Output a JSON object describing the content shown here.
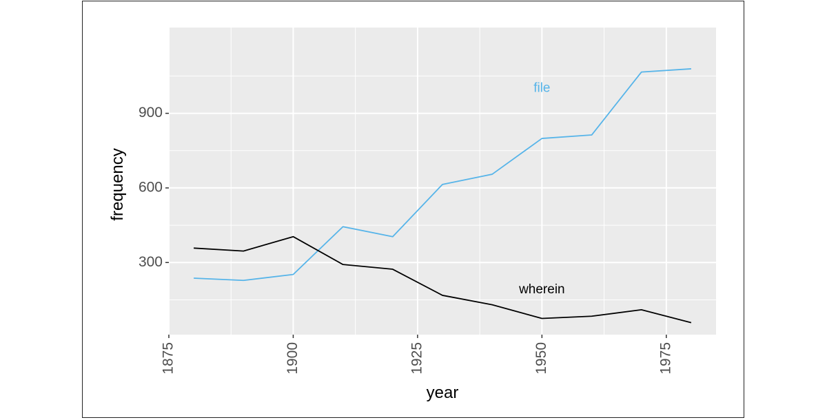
{
  "chart_data": {
    "type": "line",
    "title": "",
    "xlabel": "year",
    "ylabel": "frequency",
    "xlim": [
      1875,
      1985
    ],
    "ylim": [
      10,
      1245
    ],
    "x_ticks": [
      1875,
      1900,
      1925,
      1950,
      1975
    ],
    "y_ticks": [
      300,
      600,
      900
    ],
    "x_tick_labels": [
      "1875",
      "1900",
      "1925",
      "1950",
      "1975"
    ],
    "y_tick_labels": [
      "300",
      "600",
      "900"
    ],
    "x_minor": [
      1887.5,
      1912.5,
      1937.5,
      1962.5
    ],
    "y_minor": [
      150,
      450,
      750,
      1050
    ],
    "background": "#ebebeb",
    "grid_color": "#ffffff",
    "grid": true,
    "x": [
      1880,
      1890,
      1900,
      1910,
      1920,
      1930,
      1940,
      1950,
      1960,
      1970,
      1980
    ],
    "series": [
      {
        "name": "file",
        "color": "#56b4e9",
        "values": [
          237,
          228,
          252,
          444,
          404,
          614,
          655,
          799,
          813,
          1066,
          1079
        ],
        "label_position": [
          1950,
          1000
        ]
      },
      {
        "name": "wherein",
        "color": "#000000",
        "values": [
          358,
          346,
          404,
          292,
          273,
          168,
          130,
          75,
          84,
          110,
          58
        ],
        "label_position": [
          1950,
          190
        ]
      }
    ]
  }
}
